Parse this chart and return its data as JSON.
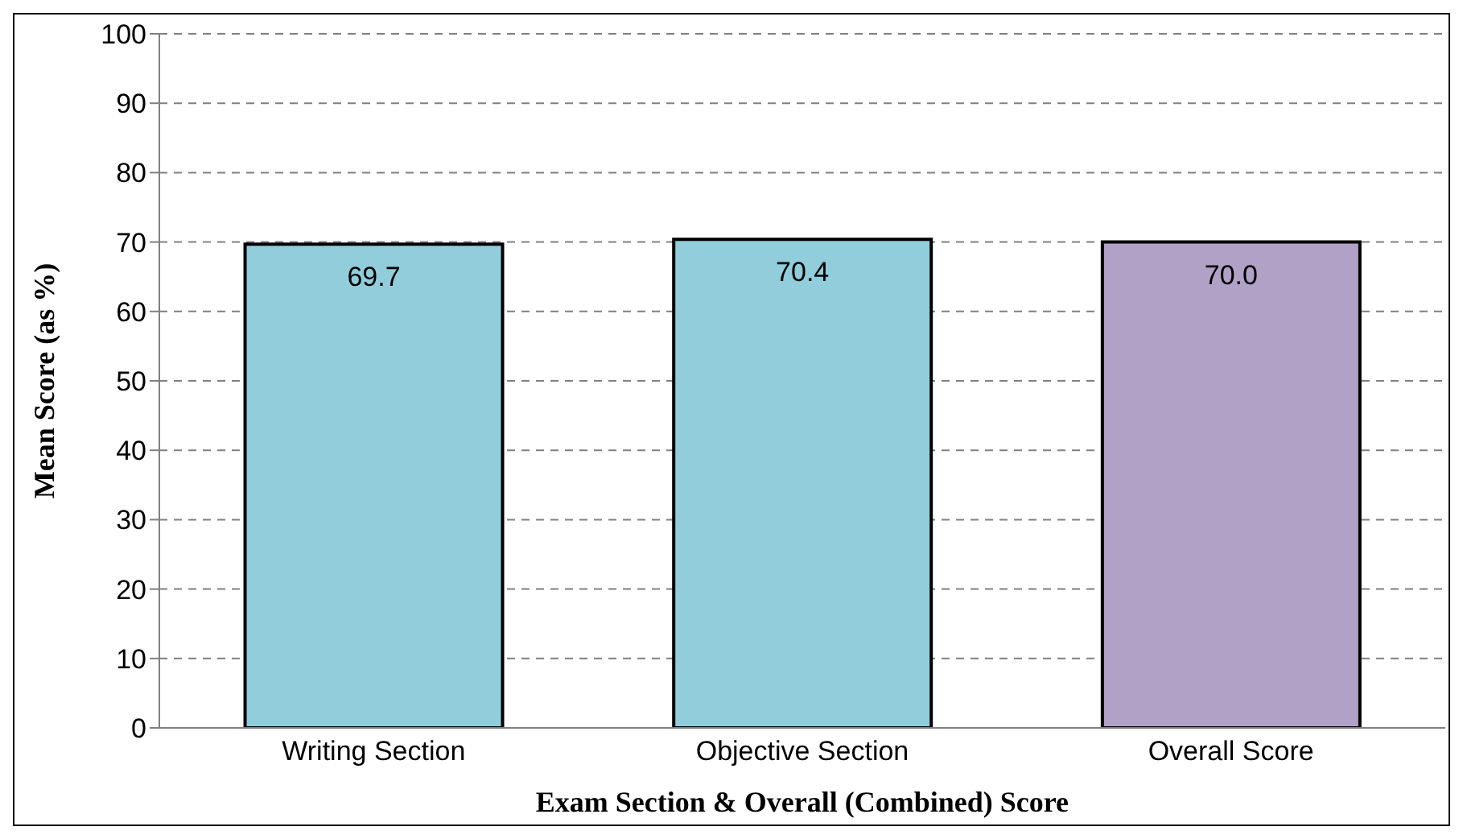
{
  "chart_data": {
    "type": "bar",
    "xlabel": "Exam Section & Overall (Combined) Score",
    "ylabel": "Mean Score (as %)",
    "categories": [
      "Writing Section",
      "Objective Section",
      "Overall Score"
    ],
    "values": [
      69.7,
      70.4,
      70.0
    ],
    "colors": [
      "#92cddc",
      "#92cddc",
      "#b2a1c7"
    ],
    "value_labels": [
      "69.7",
      "70.4",
      "70.0"
    ],
    "ylim": [
      0,
      100
    ],
    "yticks": [
      0,
      10,
      20,
      30,
      40,
      50,
      60,
      70,
      80,
      90,
      100
    ],
    "grid": "y"
  }
}
